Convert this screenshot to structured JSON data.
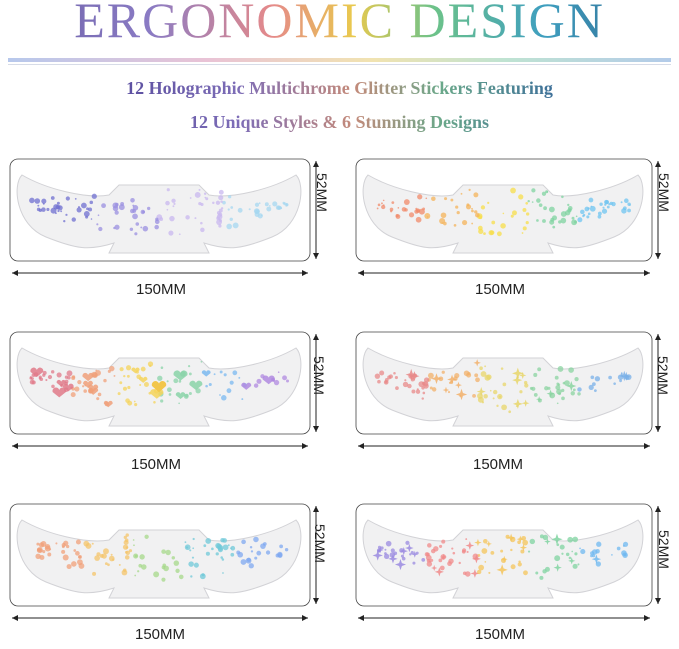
{
  "header": {
    "title": "ERGONOMIC DESIGN",
    "subtitle_line1": "12 Holographic Multichrome Glitter Stickers Featuring",
    "subtitle_line2": "12 Unique Styles & 6 Stunning Designs"
  },
  "panels": [
    {
      "width_label": "150MM",
      "height_label": "52MM",
      "pattern": "dots",
      "palette": [
        "#6f6fd0",
        "#9a8fe0",
        "#c8b7ef",
        "#a6d7f0"
      ]
    },
    {
      "width_label": "150MM",
      "height_label": "52MM",
      "pattern": "dots",
      "palette": [
        "#f08a6a",
        "#f4b35a",
        "#f7dd4a",
        "#7fd3a0",
        "#6fc4f0"
      ]
    },
    {
      "width_label": "150MM",
      "height_label": "52MM",
      "pattern": "hearts",
      "palette": [
        "#e07a8a",
        "#f0a07a",
        "#f4d35a",
        "#8ad3a8",
        "#7ab8f0",
        "#b08ae0"
      ]
    },
    {
      "width_label": "150MM",
      "height_label": "52MM",
      "pattern": "stars",
      "palette": [
        "#e88a8a",
        "#f2b06a",
        "#e8d66a",
        "#8ad3a0",
        "#7ab0e8"
      ]
    },
    {
      "width_label": "150MM",
      "height_label": "52MM",
      "pattern": "dots",
      "palette": [
        "#f0a07a",
        "#f4c46a",
        "#a6d88a",
        "#6fc8d8",
        "#7fa8f0"
      ]
    },
    {
      "width_label": "150MM",
      "height_label": "52MM",
      "pattern": "stars",
      "palette": [
        "#9a8ae0",
        "#f08a8a",
        "#f4c45a",
        "#7fd3a0",
        "#6fb8f0"
      ]
    }
  ]
}
